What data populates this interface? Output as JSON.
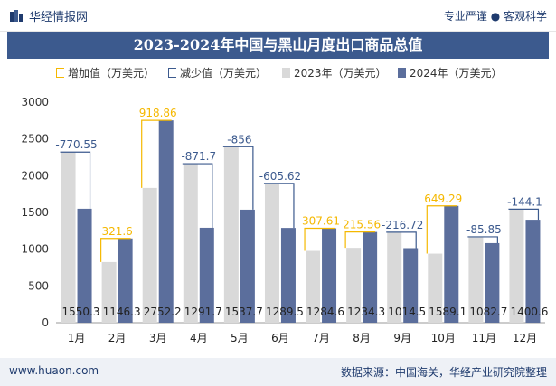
{
  "header": {
    "brand_name": "华经情报网",
    "slogan": "专业严谨 ● 客观科学"
  },
  "footer": {
    "url": "www.huaon.com",
    "source": "数据来源：中国海关，华经产业研究院整理"
  },
  "colors": {
    "increase": "#f5b800",
    "decrease": "#3c5a8e",
    "bar2023": "#d9d9d9",
    "bar2024": "#5b6e9c",
    "title_bg": "#3c5a8e"
  },
  "chart_data": {
    "type": "bar",
    "title": "2023-2024年中国与黑山月度出口商品总值",
    "categories": [
      "1月",
      "2月",
      "3月",
      "4月",
      "5月",
      "6月",
      "7月",
      "8月",
      "9月",
      "10月",
      "11月",
      "12月"
    ],
    "series": [
      {
        "name": "2023年（万美元）",
        "values": [
          2320.85,
          824.7,
          1833.34,
          2163.4,
          2393.7,
          1895.12,
          976.99,
          1018.74,
          1231.22,
          939.81,
          1168.55,
          1544.7
        ]
      },
      {
        "name": "2024年（万美元）",
        "values": [
          1550.3,
          1146.3,
          2752.2,
          1291.7,
          1537.7,
          1289.5,
          1284.6,
          1234.3,
          1014.5,
          1589.1,
          1082.7,
          1400.6
        ]
      }
    ],
    "changes": [
      {
        "name": "增加值（万美元）",
        "labels": [
          "",
          "321.6",
          "918.86",
          "",
          "",
          "",
          "307.61",
          "215.56",
          "",
          "649.29",
          "",
          ""
        ]
      },
      {
        "name": "减少值（万美元）",
        "labels": [
          "-770.55",
          "",
          "",
          "-871.7",
          "-856",
          "-605.62",
          "",
          "",
          "-216.72",
          "",
          "-85.85",
          "-144.1"
        ]
      }
    ],
    "yticks": [
      "0",
      "500",
      "1000",
      "1500",
      "2000",
      "2500",
      "3000"
    ],
    "ylim": [
      0,
      3000
    ],
    "grid": false,
    "legend_position": "top"
  }
}
